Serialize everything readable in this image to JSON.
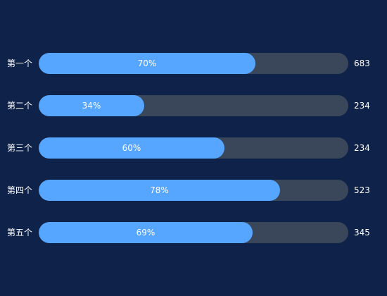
{
  "chart_data": {
    "type": "bar",
    "orientation": "horizontal",
    "categories": [
      "第一个",
      "第二个",
      "第三个",
      "第四个",
      "第五个"
    ],
    "percent": [
      70,
      34,
      60,
      78,
      69
    ],
    "percent_labels": [
      "70%",
      "34%",
      "60%",
      "78%",
      "69%"
    ],
    "values": [
      "683",
      "234",
      "234",
      "523",
      "345"
    ],
    "xlim": [
      0,
      100
    ],
    "colors": {
      "background": "#0f224a",
      "track": "#3a475b",
      "bar": "#56a5ff",
      "text": "#ffffff"
    }
  }
}
